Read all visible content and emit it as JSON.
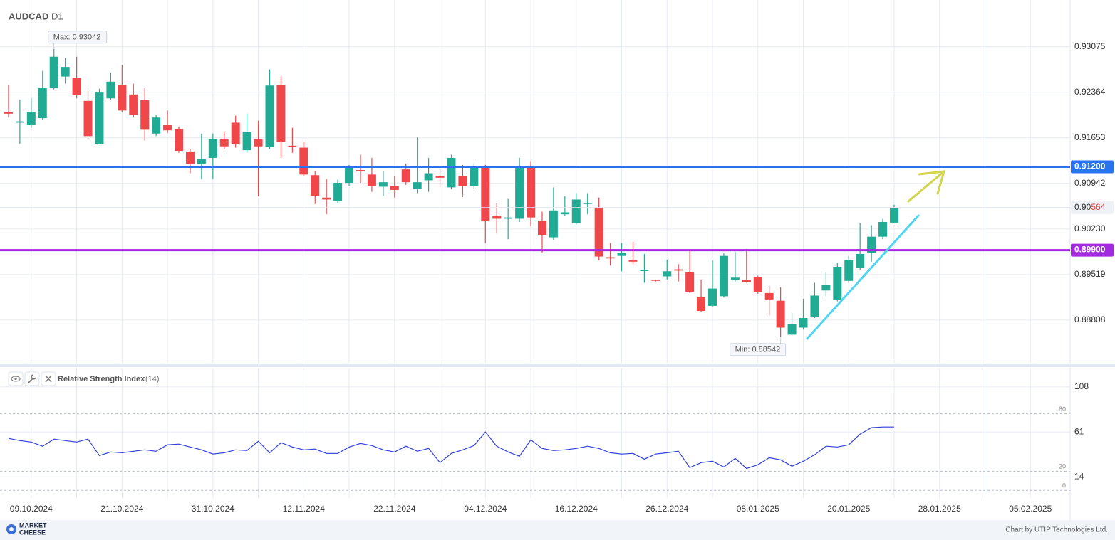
{
  "chart_data": [
    {
      "type": "candlestick",
      "title": "AUDCAD",
      "timeframe": "D1",
      "categories": [
        null,
        null,
        "09.10.2024",
        null,
        null,
        null,
        null,
        null,
        null,
        null,
        "21.10.2024",
        null,
        null,
        null,
        null,
        null,
        null,
        null,
        "31.10.2024",
        null,
        null,
        null,
        null,
        null,
        null,
        null,
        "12.11.2024",
        null,
        null,
        null,
        null,
        null,
        null,
        null,
        "22.11.2024",
        null,
        null,
        null,
        null,
        null,
        null,
        null,
        "04.12.2024",
        null,
        null,
        null,
        null,
        null,
        null,
        null,
        "16.12.2024",
        null,
        null,
        null,
        null,
        null,
        null,
        null,
        "26.12.2024",
        null,
        null,
        null,
        null,
        null,
        null,
        null,
        "08.01.2025",
        null,
        null,
        null,
        null,
        null,
        null,
        null,
        "20.01.2025",
        null,
        null,
        null,
        null,
        null,
        null,
        null,
        "28.01.2025",
        null,
        null,
        null,
        null,
        null,
        null,
        null,
        "05.02.2025",
        null,
        null,
        null
      ],
      "open": [
        0.9205,
        0.9189,
        0.9186,
        0.9196,
        0.9243,
        0.9261,
        0.9259,
        0.9223,
        0.9156,
        0.9227,
        0.9248,
        0.9233,
        0.9224,
        0.9172,
        0.9185,
        0.9179,
        0.9144,
        0.9125,
        0.9134,
        0.9163,
        0.9189,
        0.9146,
        0.9163,
        0.9151,
        0.9248,
        0.9153,
        0.915,
        0.9107,
        0.9072,
        0.9067,
        0.9095,
        0.9115,
        0.9108,
        0.9089,
        0.909,
        0.9116,
        0.9085,
        0.9099,
        0.9106,
        0.9088,
        0.9106,
        0.909,
        0.9121,
        0.9044,
        0.9039,
        0.9039,
        0.9121,
        0.9036,
        0.901,
        0.9046,
        0.9032,
        0.9062,
        0.9055,
        0.8979,
        0.8981,
        0.8974,
        0.8958,
        0.8944,
        0.8949,
        0.896,
        0.8956,
        0.8917,
        0.8903,
        0.8918,
        0.8944,
        0.8944,
        0.8948,
        0.8923,
        0.8911,
        0.8858,
        0.8869,
        0.8885,
        0.8927,
        0.8912,
        0.8942,
        0.8962,
        0.8986,
        0.9011,
        0.9033,
        null,
        null,
        null,
        null,
        null,
        null,
        null,
        null,
        null,
        null,
        null,
        null,
        null,
        null,
        null
      ],
      "high": [
        0.9248,
        0.9225,
        0.9227,
        0.927,
        0.93042,
        0.929,
        0.9292,
        0.9239,
        0.9242,
        0.9267,
        0.9279,
        0.925,
        0.9243,
        0.9201,
        0.9208,
        0.9183,
        0.9148,
        0.9172,
        0.9172,
        0.9175,
        0.92,
        0.9203,
        0.9192,
        0.9272,
        0.9261,
        0.9181,
        0.9159,
        0.9114,
        0.9101,
        0.91,
        0.9123,
        0.9139,
        0.9134,
        0.9114,
        0.9105,
        0.9125,
        0.9166,
        0.9134,
        0.9116,
        0.9139,
        0.9123,
        0.9125,
        0.9123,
        0.9063,
        0.907,
        0.9134,
        0.9129,
        0.905,
        0.9088,
        0.9074,
        0.9079,
        0.9079,
        0.9072,
        0.9001,
        0.9001,
        0.9003,
        0.8984,
        0.8944,
        0.8975,
        0.8968,
        0.899,
        0.8944,
        0.8974,
        0.8985,
        0.8987,
        0.8992,
        0.895,
        0.8934,
        0.8932,
        0.8892,
        0.8914,
        0.8939,
        0.8956,
        0.897,
        0.8981,
        0.9032,
        0.9029,
        0.9039,
        0.9061,
        null,
        null,
        null,
        null,
        null,
        null,
        null,
        null,
        null,
        null,
        null,
        null,
        null,
        null,
        null
      ],
      "low": [
        0.9197,
        0.9156,
        0.9181,
        0.9194,
        0.9241,
        0.925,
        0.9227,
        0.9164,
        0.9155,
        0.9225,
        0.9205,
        0.9197,
        0.9161,
        0.9168,
        0.9173,
        0.9142,
        0.911,
        0.9101,
        0.9101,
        0.9148,
        0.915,
        0.9144,
        0.9074,
        0.9148,
        0.9134,
        0.9142,
        0.9105,
        0.9062,
        0.9046,
        0.9063,
        0.909,
        0.9095,
        0.9081,
        0.9075,
        0.9072,
        0.9092,
        0.9079,
        0.9081,
        0.9089,
        0.9085,
        0.9073,
        0.9086,
        0.9001,
        0.9016,
        0.9007,
        0.9034,
        0.9027,
        0.8985,
        0.9006,
        0.9044,
        0.903,
        0.9046,
        0.8974,
        0.8966,
        0.8957,
        0.8968,
        0.8939,
        0.8941,
        0.8944,
        0.8941,
        0.8923,
        0.8894,
        0.8901,
        0.8916,
        0.8941,
        0.8939,
        0.8922,
        0.8888,
        0.88542,
        0.8857,
        0.8866,
        0.8884,
        0.8916,
        0.891,
        0.8939,
        0.8959,
        0.8972,
        0.9007,
        0.9032,
        null,
        null,
        null,
        null,
        null,
        null,
        null,
        null,
        null,
        null,
        null,
        null,
        null,
        null,
        null
      ],
      "close": [
        0.9203,
        0.9191,
        0.9205,
        0.9243,
        0.9292,
        0.9276,
        0.9232,
        0.9168,
        0.9236,
        0.9253,
        0.9208,
        0.9201,
        0.9178,
        0.9197,
        0.9177,
        0.9145,
        0.9125,
        0.9132,
        0.9163,
        0.9152,
        0.9155,
        0.9175,
        0.9152,
        0.9247,
        0.9159,
        0.9151,
        0.9108,
        0.9075,
        0.9069,
        0.9095,
        0.9121,
        0.9113,
        0.909,
        0.9096,
        0.9084,
        0.9096,
        0.9096,
        0.911,
        0.9103,
        0.9134,
        0.909,
        0.9121,
        0.9035,
        0.9039,
        0.9041,
        0.9121,
        0.9041,
        0.9013,
        0.9052,
        0.9049,
        0.9069,
        0.9064,
        0.898,
        0.8977,
        0.8986,
        0.8972,
        0.8959,
        0.8942,
        0.8957,
        0.8958,
        0.8925,
        0.8895,
        0.893,
        0.8981,
        0.8947,
        0.894,
        0.8924,
        0.8913,
        0.8869,
        0.8875,
        0.8884,
        0.8919,
        0.8936,
        0.8964,
        0.8974,
        0.8984,
        0.9011,
        0.9034,
        0.90564,
        null,
        null,
        null,
        null,
        null,
        null,
        null,
        null,
        null,
        null,
        null,
        null,
        null,
        null,
        null
      ],
      "up_color": "#22ab94",
      "down_color": "#f0474a",
      "ylim": [
        0.8814,
        0.9375
      ],
      "yticks": [
        0.88808,
        0.89519,
        {
          "value": 0.9023,
          "label": "0.90230"
        },
        0.90942,
        0.91653,
        0.92364,
        0.93075
      ],
      "hlines": [
        {
          "value": 0.912,
          "label": "0.91200",
          "color": "#2a73f0"
        },
        {
          "value": 0.899,
          "label": "0.89900",
          "color": "#a42adf"
        }
      ],
      "max_label": "Max: 0.93042",
      "min_label": "Min: 0.88542",
      "grid": true
    },
    {
      "type": "line",
      "title": "Relative Strength Index",
      "period_label": "(14)",
      "values": [
        54.3,
        52.0,
        50.5,
        46.1,
        53.5,
        52.0,
        50.5,
        53.5,
        36.4,
        40.1,
        39.3,
        40.8,
        42.3,
        40.8,
        47.6,
        48.3,
        45.3,
        42.3,
        37.9,
        39.3,
        42.3,
        41.6,
        51.3,
        39.3,
        49.8,
        45.3,
        42.3,
        43.1,
        38.6,
        38.6,
        45.3,
        49.0,
        46.8,
        42.3,
        40.1,
        46.1,
        40.8,
        43.8,
        28.9,
        38.6,
        42.3,
        46.8,
        61.0,
        46.1,
        40.1,
        35.6,
        52.8,
        43.8,
        41.6,
        42.3,
        43.8,
        46.1,
        43.8,
        39.3,
        37.9,
        38.6,
        32.6,
        37.9,
        39.3,
        40.8,
        23.7,
        28.9,
        30.4,
        24.4,
        33.4,
        22.9,
        26.7,
        34.1,
        31.9,
        25.2,
        30.4,
        37.1,
        46.1,
        45.3,
        47.6,
        58.7,
        65.5,
        66.2,
        66.2,
        null,
        null,
        null,
        null,
        null,
        null,
        null,
        null,
        null,
        null,
        null,
        null,
        null,
        null,
        null
      ],
      "color": "#2f3fd9",
      "ylim": [
        -8,
        128
      ],
      "yticks": [
        14,
        61,
        108
      ],
      "levels": [
        0,
        20,
        80
      ],
      "grid": true
    }
  ],
  "footer": {
    "logo": [
      "MARKET",
      "CHEESE"
    ],
    "credit": "Chart by UTIP Technologies Ltd."
  }
}
